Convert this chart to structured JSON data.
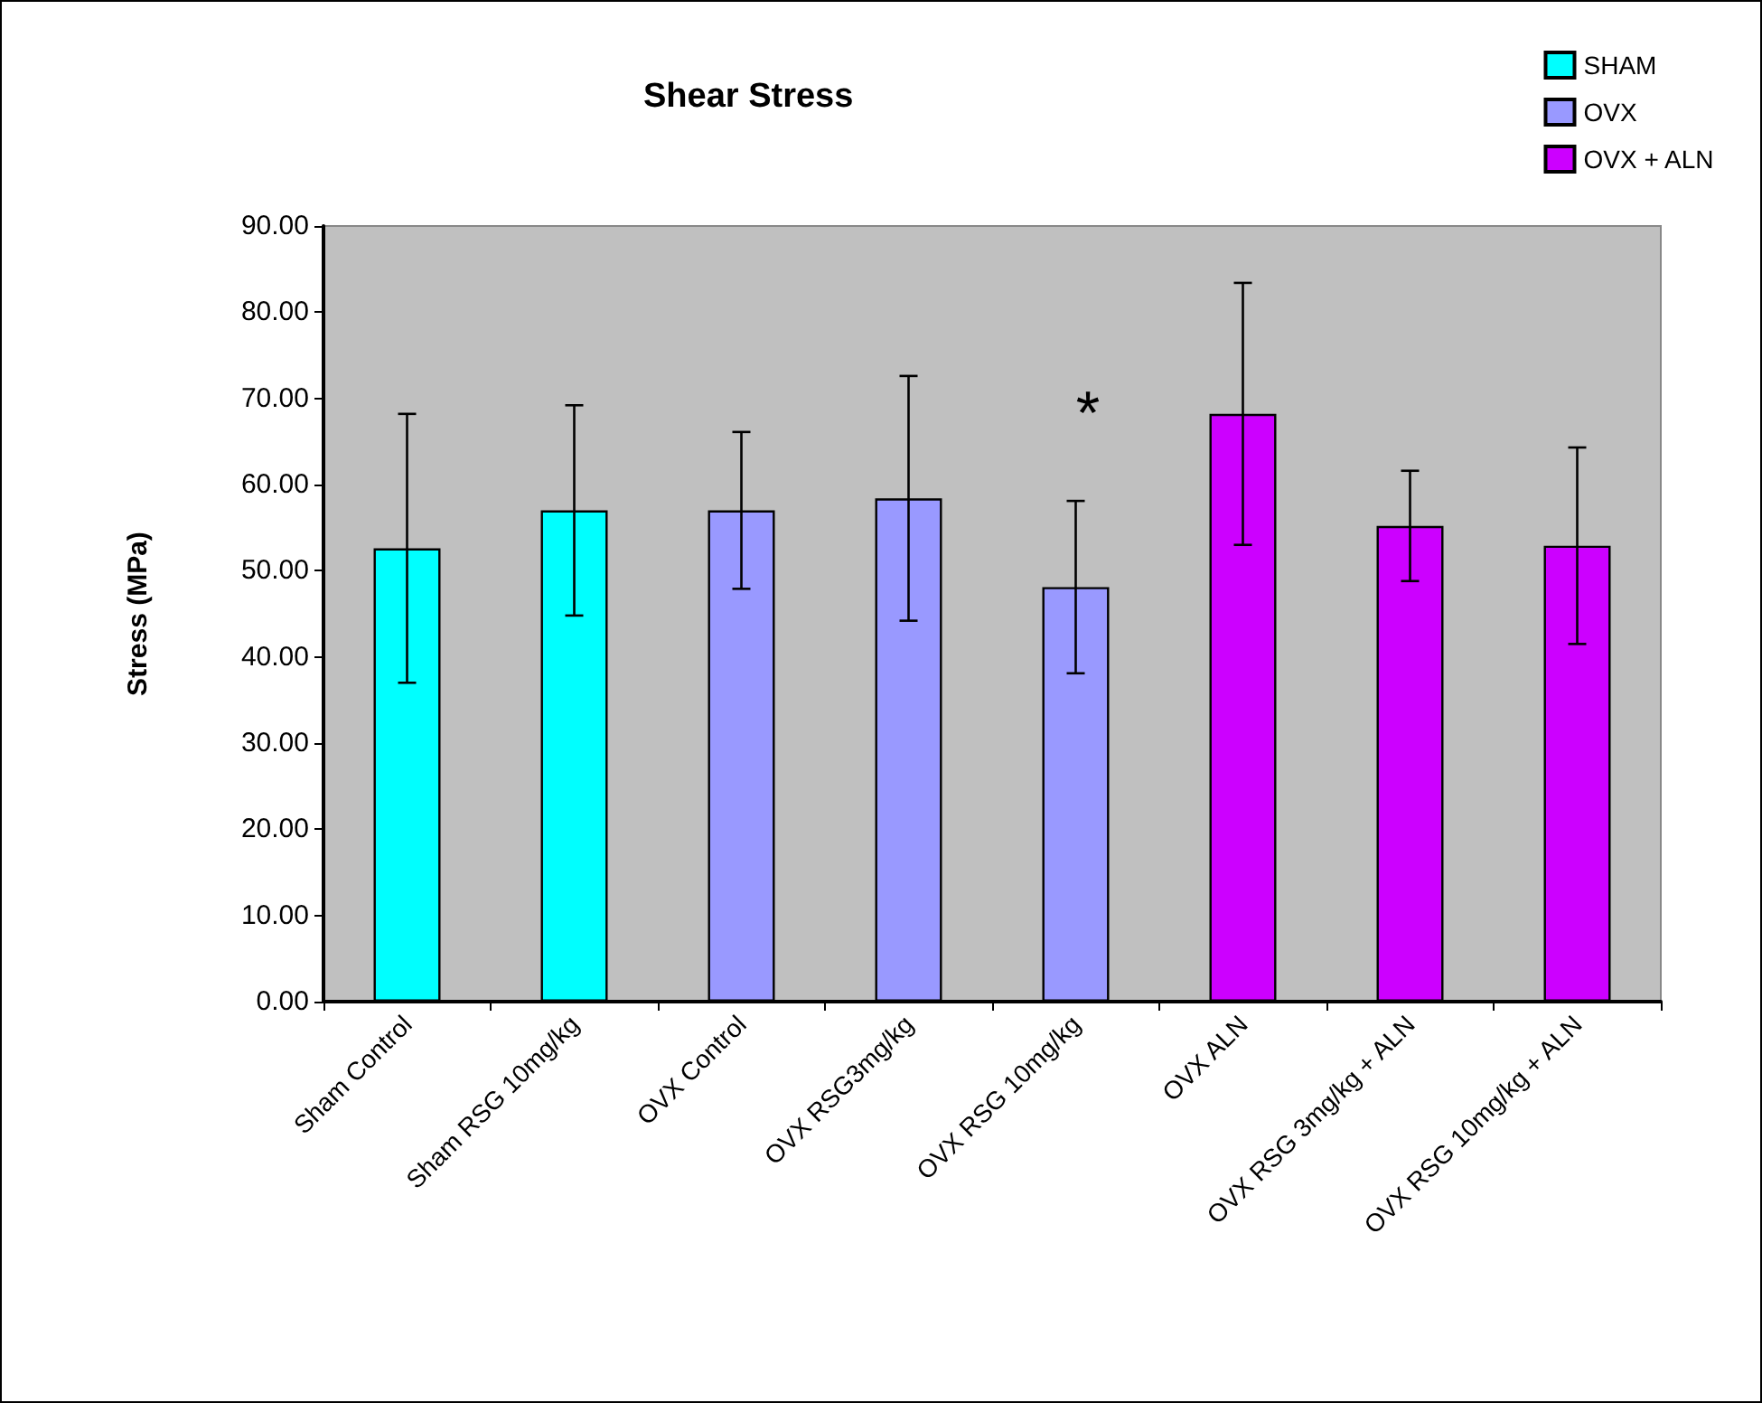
{
  "chart_data": {
    "type": "bar",
    "title": "Shear Stress",
    "ylabel": "Stress (MPa)",
    "categories": [
      "Sham Control",
      "Sham RSG 10mg/kg",
      "OVX Control",
      "OVX RSG3mg/kg",
      "OVX RSG 10mg/kg",
      "OVX ALN",
      "OVX RSG 3mg/kg + ALN",
      "OVX RSG 10mg/kg + ALN"
    ],
    "series": [
      {
        "name": "SHAM",
        "color": "#00ffff",
        "values": [
          52.6,
          57.0,
          null,
          null,
          null,
          null,
          null,
          null
        ],
        "errors": [
          15.6,
          12.2,
          null,
          null,
          null,
          null,
          null,
          null
        ]
      },
      {
        "name": "OVX",
        "color": "#9999ff",
        "values": [
          null,
          null,
          57.0,
          58.4,
          48.1,
          null,
          null,
          null
        ],
        "errors": [
          null,
          null,
          9.1,
          14.2,
          10.0,
          null,
          null,
          null
        ]
      },
      {
        "name": "OVX + ALN",
        "color": "#cc00ff",
        "values": [
          null,
          null,
          null,
          null,
          null,
          68.2,
          55.2,
          52.9
        ],
        "errors": [
          null,
          null,
          null,
          null,
          null,
          15.2,
          6.4,
          11.4
        ]
      }
    ],
    "ylim": [
      0,
      90
    ],
    "yticks": [
      {
        "value": 0,
        "label": "0.00"
      },
      {
        "value": 10,
        "label": "10.00"
      },
      {
        "value": 20,
        "label": "20.00"
      },
      {
        "value": 30,
        "label": "30.00"
      },
      {
        "value": 40,
        "label": "40.00"
      },
      {
        "value": 50,
        "label": "50.00"
      },
      {
        "value": 60,
        "label": "60.00"
      },
      {
        "value": 70,
        "label": "70.00"
      },
      {
        "value": 80,
        "label": "80.00"
      },
      {
        "value": 90,
        "label": "90.00"
      }
    ],
    "annotations": [
      "*"
    ],
    "legend": "top right",
    "grid": false
  }
}
